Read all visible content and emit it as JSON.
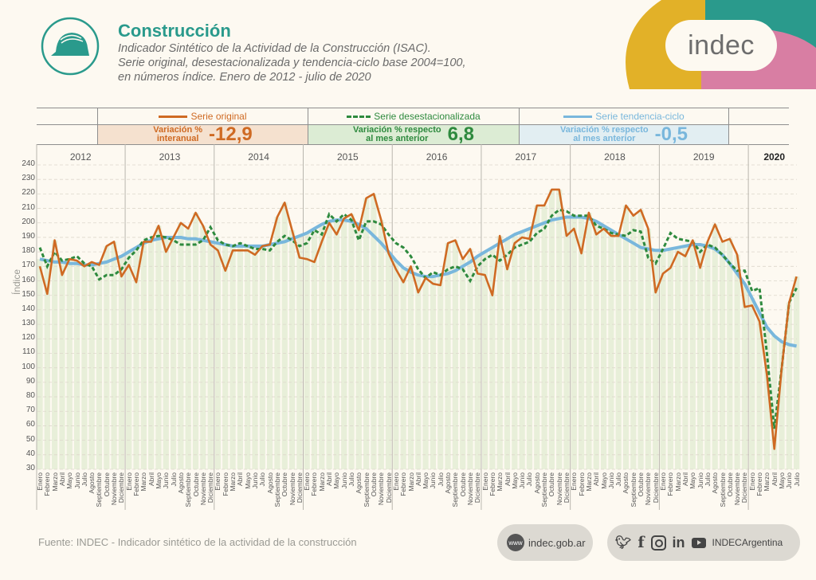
{
  "header": {
    "title": "Construcción",
    "subtitle_lines": [
      "Indicador Sintético de la Actividad de la Construcción (ISAC).",
      "Serie original, desestacionalizada y tendencia-ciclo base 2004=100,",
      "en números índice. Enero de 2012 - julio de 2020"
    ],
    "icon": "helmet-icon",
    "logo_text": "indec"
  },
  "colors": {
    "original": "#cf6a23",
    "desest": "#2e8a3e",
    "tendencia": "#79b7dc",
    "teal": "#2a9a8c",
    "yellow": "#e2b128",
    "pink": "#d87ea3"
  },
  "legend": {
    "original": {
      "label": "Serie original",
      "var_label_1": "Variación %",
      "var_label_2": "interanual",
      "value": "-12,9"
    },
    "desest": {
      "label": "Serie desestacionalizada",
      "var_label_1": "Variación % respecto",
      "var_label_2": "al mes anterior",
      "value": "6,8"
    },
    "tendencia": {
      "label": "Serie tendencia-ciclo",
      "var_label_1": "Variación % respecto",
      "var_label_2": "al mes anterior",
      "value": "-0,5"
    }
  },
  "footer": {
    "source": "Fuente: INDEC - Indicador sintético de la actividad de la construcción",
    "web_icon_text": "www",
    "web": "indec.gob.ar",
    "social_handle": "INDECArgentina",
    "social_icons": [
      "twitter-icon",
      "facebook-icon",
      "instagram-icon",
      "linkedin-icon",
      "youtube-icon"
    ]
  },
  "chart_data": {
    "type": "line",
    "title": "Construcción",
    "ylabel": "Índice",
    "xlabel": "",
    "ylim": [
      30,
      240
    ],
    "yticks": [
      240,
      230,
      220,
      210,
      200,
      190,
      180,
      170,
      160,
      150,
      140,
      130,
      120,
      110,
      100,
      90,
      80,
      70,
      60,
      50,
      40,
      30
    ],
    "grid": true,
    "years": [
      "2012",
      "2013",
      "2014",
      "2015",
      "2016",
      "2017",
      "2018",
      "2019",
      "2020"
    ],
    "months": [
      "Enero",
      "Febrero",
      "Marzo",
      "Abril",
      "Mayo",
      "Junio",
      "Julio",
      "Agosto",
      "Septiembre",
      "Octubre",
      "Noviembre",
      "Diciembre"
    ],
    "months_last_year": 7,
    "series": [
      {
        "name": "Serie original",
        "key": "original",
        "values": [
          170,
          151,
          188,
          164,
          175,
          174,
          170,
          173,
          171,
          184,
          187,
          163,
          171,
          159,
          187,
          187,
          198,
          180,
          190,
          200,
          196,
          207,
          198,
          185,
          181,
          167,
          181,
          181,
          181,
          178,
          184,
          185,
          204,
          214,
          195,
          176,
          175,
          173,
          187,
          200,
          192,
          203,
          206,
          195,
          217,
          220,
          202,
          179,
          168,
          159,
          170,
          152,
          162,
          158,
          157,
          186,
          188,
          175,
          182,
          165,
          164,
          150,
          191,
          168,
          186,
          190,
          189,
          212,
          212,
          223,
          223,
          191,
          196,
          179,
          207,
          192,
          196,
          191,
          191,
          212,
          205,
          209,
          196,
          152,
          165,
          169,
          180,
          177,
          188,
          169,
          187,
          199,
          187,
          189,
          178,
          142,
          143,
          132,
          95,
          44,
          100,
          145,
          163
        ]
      },
      {
        "name": "Serie desestacionalizada",
        "key": "desest",
        "values": [
          183,
          170,
          180,
          174,
          175,
          177,
          172,
          170,
          161,
          164,
          164,
          168,
          176,
          181,
          188,
          190,
          191,
          190,
          188,
          185,
          185,
          185,
          188,
          197,
          188,
          185,
          184,
          186,
          184,
          182,
          182,
          181,
          187,
          191,
          188,
          184,
          186,
          195,
          192,
          206,
          201,
          206,
          202,
          188,
          201,
          201,
          199,
          192,
          186,
          183,
          177,
          168,
          162,
          166,
          164,
          168,
          170,
          168,
          160,
          170,
          175,
          178,
          174,
          178,
          183,
          185,
          187,
          193,
          196,
          205,
          209,
          208,
          205,
          205,
          205,
          198,
          196,
          193,
          192,
          191,
          195,
          194,
          176,
          172,
          182,
          193,
          189,
          188,
          187,
          180,
          185,
          183,
          178,
          172,
          167,
          167,
          153,
          155,
          110,
          58,
          100,
          145,
          155
        ]
      },
      {
        "name": "Serie tendencia-ciclo",
        "key": "tendencia",
        "values": [
          175,
          174,
          173,
          173,
          172,
          172,
          171,
          171,
          172,
          173,
          175,
          177,
          180,
          183,
          186,
          188,
          189,
          190,
          190,
          190,
          189,
          189,
          188,
          187,
          186,
          185,
          184,
          184,
          184,
          184,
          184,
          185,
          186,
          187,
          189,
          191,
          193,
          196,
          199,
          201,
          202,
          202,
          201,
          199,
          196,
          191,
          186,
          180,
          174,
          169,
          166,
          164,
          163,
          163,
          164,
          165,
          167,
          170,
          173,
          177,
          180,
          183,
          186,
          189,
          192,
          194,
          196,
          198,
          200,
          202,
          203,
          204,
          204,
          204,
          203,
          201,
          198,
          195,
          192,
          189,
          186,
          183,
          182,
          181,
          181,
          182,
          183,
          184,
          185,
          185,
          184,
          182,
          178,
          172,
          165,
          158,
          148,
          138,
          128,
          122,
          118,
          116,
          115
        ]
      }
    ]
  }
}
